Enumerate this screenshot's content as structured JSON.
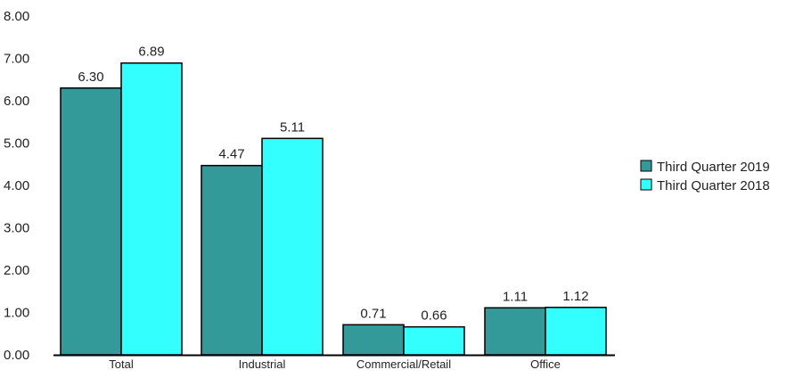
{
  "chart_data": {
    "type": "bar",
    "title": "",
    "xlabel": "",
    "ylabel": "",
    "categories": [
      "Total",
      "Industrial",
      "Commercial/Retail",
      "Office"
    ],
    "series": [
      {
        "name": "Third Quarter 2019",
        "color": "#339999",
        "values": [
          6.3,
          4.47,
          0.71,
          1.11
        ],
        "labels": [
          "6.30",
          "4.47",
          "0.71",
          "1.11"
        ]
      },
      {
        "name": "Third Quarter 2018",
        "color": "#33ffff",
        "values": [
          6.89,
          5.11,
          0.66,
          1.12
        ],
        "labels": [
          "6.89",
          "5.11",
          "0.66",
          "1.12"
        ]
      }
    ],
    "ylim": [
      0,
      8
    ],
    "yticks": [
      "0.00",
      "1.00",
      "2.00",
      "3.00",
      "4.00",
      "5.00",
      "6.00",
      "7.00",
      "8.00"
    ],
    "grid": false,
    "legend_position": "right"
  }
}
